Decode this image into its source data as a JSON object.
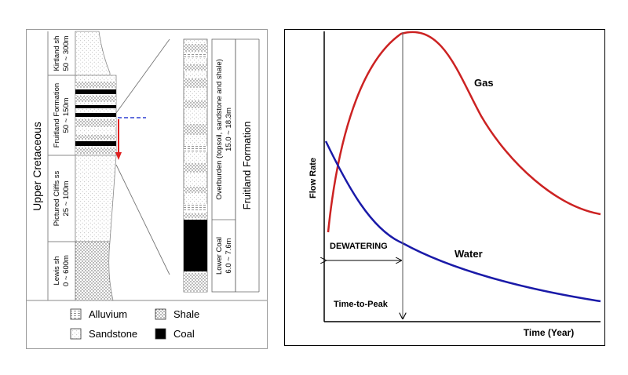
{
  "stratigraphy": {
    "era_label": "Upper Cretaceous",
    "units": [
      {
        "name": "Kirtland sh",
        "thickness": "50 ~ 300m"
      },
      {
        "name": "Fruitland Formation",
        "thickness": "50 ~ 150m"
      },
      {
        "name": "Pictured Cliffs ss",
        "thickness": "25 ~ 100m"
      },
      {
        "name": "Lewis sh",
        "thickness": "0 ~ 600m"
      }
    ],
    "detail": {
      "overburden_label": "Overburden (topsoil, sandstone and shale)",
      "overburden_thickness": "15.0 ~ 18.3m",
      "coal_label": "Lower Coal",
      "coal_thickness": "6.0 ~ 7.6m",
      "formation_label": "Fruitland Formation"
    },
    "legend": [
      {
        "label": "Alluvium",
        "pattern": "alluvium"
      },
      {
        "label": "Shale",
        "pattern": "shale"
      },
      {
        "label": "Sandstone",
        "pattern": "sandstone"
      },
      {
        "label": "Coal",
        "pattern": "coal"
      }
    ],
    "colors": {
      "marker_line": "#2f3fd0",
      "marker_arrow": "#e02020"
    }
  },
  "flow_chart": {
    "y_axis_label": "Flow Rate",
    "x_axis_label": "Time (Year)",
    "gas_label": "Gas",
    "water_label": "Water",
    "dewatering_label": "DEWATERING",
    "time_to_peak_label": "Time-to-Peak",
    "colors": {
      "gas": "#cc2222",
      "water": "#1a1aa8"
    }
  }
}
